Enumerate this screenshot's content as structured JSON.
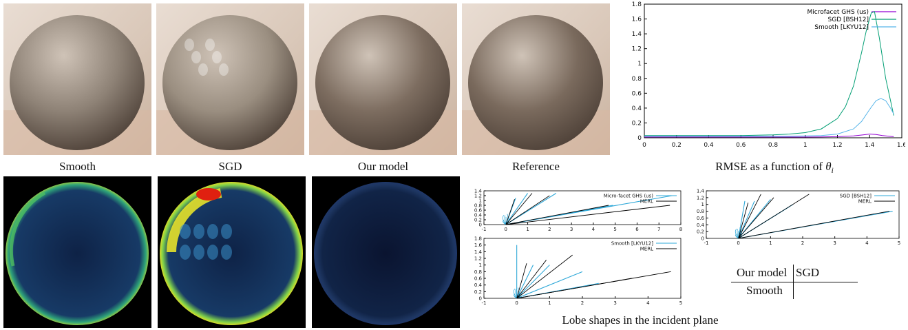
{
  "renders": [
    {
      "id": "smooth",
      "caption": "Smooth",
      "tone": "#8e8276"
    },
    {
      "id": "sgd",
      "caption": "SGD",
      "tone": "#9a8e80"
    },
    {
      "id": "ours",
      "caption": "Our model",
      "tone": "#7d6d60"
    },
    {
      "id": "reference",
      "caption": "Reference",
      "tone": "#7a6a5d"
    }
  ],
  "rmse_caption_prefix": "RMSE as a function of ",
  "rmse_caption_symbol": "θ",
  "rmse_caption_sub": "i",
  "lobe_caption": "Lobe shapes in the incident plane",
  "layout_key": {
    "top_left": "Our model",
    "top_right": "SGD",
    "bottom_left": "Smooth"
  },
  "colors": {
    "ghs": "#9400d3",
    "sgd": "#009e73",
    "smooth": "#56b4e9",
    "merl": "#000000",
    "lobe_model": "#2ea8d8"
  },
  "chart_data": [
    {
      "type": "line",
      "title": "",
      "xlabel": "",
      "ylabel": "",
      "xlim": [
        0,
        1.6
      ],
      "ylim": [
        0,
        1.8
      ],
      "xticks": [
        "0",
        "0.2",
        "0.4",
        "0.6",
        "0.8",
        "1",
        "1.2",
        "1.4",
        "1.6"
      ],
      "yticks": [
        "0",
        "0.2",
        "0.4",
        "0.6",
        "0.8",
        "1",
        "1.2",
        "1.4",
        "1.6",
        "1.8"
      ],
      "legend_position": "top-right",
      "series": [
        {
          "name": "Microfacet GHS (us)",
          "color": "#9400d3",
          "x": [
            0,
            0.2,
            0.4,
            0.6,
            0.8,
            1.0,
            1.1,
            1.2,
            1.3,
            1.36,
            1.4,
            1.44,
            1.48,
            1.52,
            1.55
          ],
          "y": [
            0.01,
            0.01,
            0.01,
            0.01,
            0.01,
            0.01,
            0.012,
            0.015,
            0.025,
            0.04,
            0.05,
            0.045,
            0.03,
            0.02,
            0.015
          ]
        },
        {
          "name": "SGD [BSH12]",
          "color": "#009e73",
          "x": [
            0,
            0.2,
            0.4,
            0.6,
            0.8,
            0.9,
            1.0,
            1.1,
            1.2,
            1.25,
            1.3,
            1.35,
            1.38,
            1.41,
            1.43,
            1.46,
            1.5,
            1.55
          ],
          "y": [
            0.03,
            0.03,
            0.03,
            0.03,
            0.04,
            0.05,
            0.07,
            0.12,
            0.26,
            0.42,
            0.7,
            1.15,
            1.45,
            1.68,
            1.7,
            1.35,
            0.8,
            0.3
          ]
        },
        {
          "name": "Smooth [LKYU12]",
          "color": "#56b4e9",
          "x": [
            0,
            0.2,
            0.4,
            0.6,
            0.8,
            1.0,
            1.1,
            1.2,
            1.3,
            1.35,
            1.4,
            1.44,
            1.47,
            1.5,
            1.53,
            1.55
          ],
          "y": [
            0.02,
            0.02,
            0.02,
            0.02,
            0.02,
            0.025,
            0.03,
            0.05,
            0.12,
            0.22,
            0.38,
            0.5,
            0.53,
            0.5,
            0.4,
            0.32
          ]
        }
      ]
    },
    {
      "type": "line",
      "title": "",
      "xlim": [
        -1,
        8
      ],
      "ylim": [
        0,
        1.4
      ],
      "xticks": [
        "-1",
        "0",
        "1",
        "2",
        "3",
        "4",
        "5",
        "6",
        "7",
        "8"
      ],
      "yticks": [
        "0",
        "0.2",
        "0.4",
        "0.6",
        "0.8",
        "1",
        "1.2",
        "1.4"
      ],
      "legend_position": "top-right",
      "series": [
        {
          "name": "Micro-facet GHS (us)",
          "color": "#2ea8d8",
          "end_points": [
            [
              0.45,
              1.1
            ],
            [
              1.0,
              1.3
            ],
            [
              2.3,
              1.3
            ],
            [
              4.9,
              0.8
            ],
            [
              7.6,
              1.2
            ]
          ]
        },
        {
          "name": "MERL",
          "color": "#000000",
          "end_points": [
            [
              0.4,
              1.05
            ],
            [
              1.2,
              1.3
            ],
            [
              2.0,
              1.2
            ],
            [
              4.7,
              0.8
            ],
            [
              7.5,
              0.8
            ]
          ]
        }
      ]
    },
    {
      "type": "line",
      "title": "",
      "xlim": [
        -1,
        5
      ],
      "ylim": [
        0,
        1.4
      ],
      "xticks": [
        "-1",
        "0",
        "1",
        "2",
        "3",
        "4",
        "5"
      ],
      "yticks": [
        "0",
        "0.2",
        "0.4",
        "0.6",
        "0.8",
        "1",
        "1.2",
        "1.4"
      ],
      "legend_position": "top-right",
      "series": [
        {
          "name": "SGD [BSH12]",
          "color": "#2ea8d8",
          "end_points": [
            [
              0.2,
              1.1
            ],
            [
              0.5,
              1.1
            ],
            [
              1.0,
              1.15
            ],
            [
              1.7,
              1.0
            ],
            [
              4.8,
              0.8
            ]
          ]
        },
        {
          "name": "MERL",
          "color": "#000000",
          "end_points": [
            [
              0.3,
              1.05
            ],
            [
              0.7,
              1.3
            ],
            [
              1.1,
              1.2
            ],
            [
              2.2,
              1.3
            ],
            [
              4.7,
              0.8
            ]
          ]
        }
      ]
    },
    {
      "type": "line",
      "title": "",
      "xlim": [
        -1,
        5
      ],
      "ylim": [
        0,
        1.8
      ],
      "xticks": [
        "-1",
        "0",
        "1",
        "2",
        "3",
        "4",
        "5"
      ],
      "yticks": [
        "0",
        "0.2",
        "0.4",
        "0.6",
        "0.8",
        "1",
        "1.2",
        "1.4",
        "1.6",
        "1.8"
      ],
      "legend_position": "top-right",
      "series": [
        {
          "name": "Smooth [LKYU12]",
          "color": "#2ea8d8",
          "end_points": [
            [
              0,
              1.6
            ],
            [
              0.5,
              1.0
            ],
            [
              1.0,
              1.0
            ],
            [
              2.0,
              0.8
            ],
            [
              2.5,
              0.45
            ]
          ]
        },
        {
          "name": "MERL",
          "color": "#000000",
          "end_points": [
            [
              0.3,
              1.05
            ],
            [
              0.9,
              1.15
            ],
            [
              1.7,
              1.3
            ],
            [
              3.5,
              0.6
            ],
            [
              4.7,
              0.8
            ]
          ]
        }
      ]
    }
  ]
}
